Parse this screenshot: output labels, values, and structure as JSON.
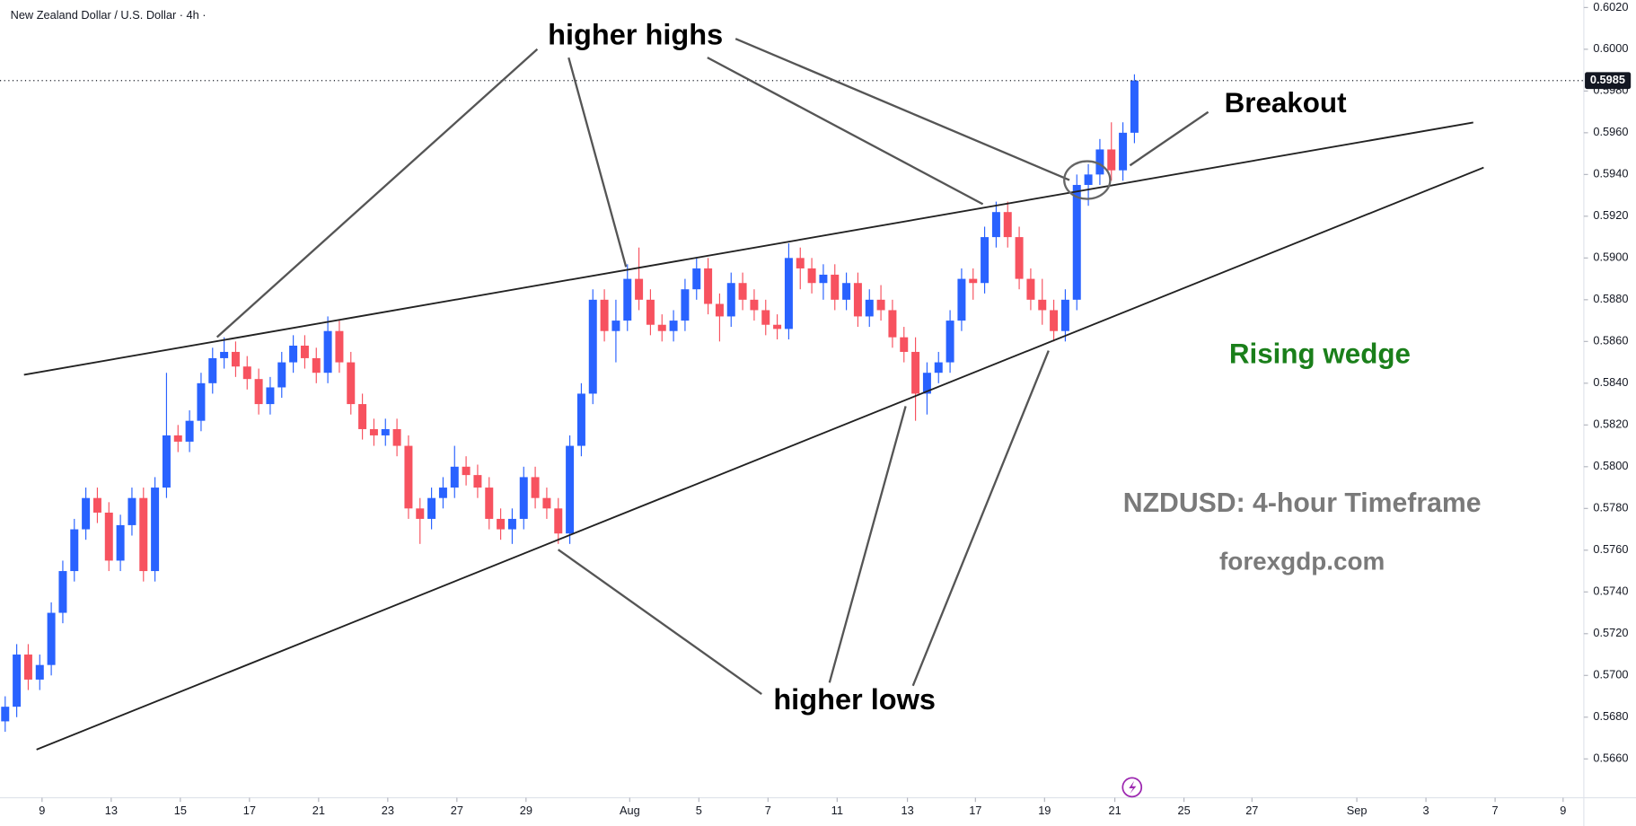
{
  "chart_data": {
    "type": "candlestick",
    "title": "New Zealand Dollar / U.S. Dollar · 4h ·",
    "up_color": "#2962ff",
    "down_color": "#f7525f",
    "grid": false,
    "annotations": {
      "higher_highs": "higher highs",
      "breakout": "Breakout",
      "rising_wedge": "Rising wedge",
      "timeframe": "NZDUSD: 4-hour Timeframe",
      "site": "forexgdp.com",
      "higher_lows": "higher lows"
    },
    "xlim": [
      -0.45,
      137.0
    ],
    "xticks": [
      {
        "value": 3.2,
        "label": "9"
      },
      {
        "value": 9.2,
        "label": "13"
      },
      {
        "value": 15.2,
        "label": "15"
      },
      {
        "value": 21.2,
        "label": "17"
      },
      {
        "value": 27.2,
        "label": "21"
      },
      {
        "value": 33.2,
        "label": "23"
      },
      {
        "value": 39.2,
        "label": "27"
      },
      {
        "value": 45.2,
        "label": "29"
      },
      {
        "value": 54.2,
        "label": "Aug"
      },
      {
        "value": 60.2,
        "label": "5"
      },
      {
        "value": 66.2,
        "label": "7"
      },
      {
        "value": 72.2,
        "label": "11"
      },
      {
        "value": 78.3,
        "label": "13"
      },
      {
        "value": 84.2,
        "label": "17"
      },
      {
        "value": 90.2,
        "label": "19"
      },
      {
        "value": 96.3,
        "label": "21"
      },
      {
        "value": 102.3,
        "label": "25"
      },
      {
        "value": 108.2,
        "label": "27"
      },
      {
        "value": 117.3,
        "label": "Sep"
      },
      {
        "value": 123.3,
        "label": "3"
      },
      {
        "value": 129.3,
        "label": "7"
      },
      {
        "value": 135.2,
        "label": "9"
      }
    ],
    "ylim": [
      0.56414,
      0.60236
    ],
    "yticks": [
      {
        "value": 0.566,
        "label": "0.5660"
      },
      {
        "value": 0.568,
        "label": "0.5680"
      },
      {
        "value": 0.57,
        "label": "0.5700"
      },
      {
        "value": 0.572,
        "label": "0.5720"
      },
      {
        "value": 0.574,
        "label": "0.5740"
      },
      {
        "value": 0.576,
        "label": "0.5760"
      },
      {
        "value": 0.578,
        "label": "0.5780"
      },
      {
        "value": 0.58,
        "label": "0.5800"
      },
      {
        "value": 0.582,
        "label": "0.5820"
      },
      {
        "value": 0.584,
        "label": "0.5840"
      },
      {
        "value": 0.586,
        "label": "0.5860"
      },
      {
        "value": 0.588,
        "label": "0.5880"
      },
      {
        "value": 0.59,
        "label": "0.5900"
      },
      {
        "value": 0.592,
        "label": "0.5920"
      },
      {
        "value": 0.594,
        "label": "0.5940"
      },
      {
        "value": 0.596,
        "label": "0.5960"
      },
      {
        "value": 0.598,
        "label": "0.5980"
      },
      {
        "value": 0.6,
        "label": "0.6000"
      },
      {
        "value": 0.602,
        "label": "0.6020"
      }
    ],
    "open": [
      0.5678,
      0.5685,
      0.571,
      0.5698,
      0.5705,
      0.573,
      0.575,
      0.577,
      0.5785,
      0.5778,
      0.5755,
      0.5772,
      0.5785,
      0.575,
      0.579,
      0.5815,
      0.5812,
      0.5822,
      0.584,
      0.5852,
      0.5855,
      0.5848,
      0.5842,
      0.583,
      0.5838,
      0.585,
      0.5858,
      0.5852,
      0.5845,
      0.5865,
      0.585,
      0.583,
      0.5818,
      0.5815,
      0.5818,
      0.581,
      0.578,
      0.5775,
      0.5785,
      0.579,
      0.58,
      0.5796,
      0.579,
      0.5775,
      0.577,
      0.5775,
      0.5795,
      0.5785,
      0.578,
      0.5768,
      0.581,
      0.5835,
      0.588,
      0.5865,
      0.587,
      0.589,
      0.588,
      0.5868,
      0.5865,
      0.587,
      0.5885,
      0.5895,
      0.5878,
      0.5872,
      0.5888,
      0.588,
      0.5875,
      0.5868,
      0.5866,
      0.59,
      0.5895,
      0.5888,
      0.5892,
      0.588,
      0.5888,
      0.5872,
      0.588,
      0.5875,
      0.5862,
      0.5855,
      0.5835,
      0.5845,
      0.585,
      0.587,
      0.589,
      0.5888,
      0.591,
      0.5922,
      0.591,
      0.589,
      0.588,
      0.5875,
      0.5865,
      0.588,
      0.5935,
      0.594,
      0.5952,
      0.5942,
      0.596
    ],
    "high": [
      0.569,
      0.5715,
      0.5715,
      0.571,
      0.5735,
      0.5755,
      0.5775,
      0.579,
      0.579,
      0.5783,
      0.5777,
      0.579,
      0.579,
      0.5795,
      0.5845,
      0.582,
      0.5827,
      0.5845,
      0.5857,
      0.5862,
      0.586,
      0.5853,
      0.5847,
      0.5843,
      0.5855,
      0.5863,
      0.5863,
      0.5857,
      0.5872,
      0.587,
      0.5855,
      0.5835,
      0.5823,
      0.5823,
      0.5823,
      0.5815,
      0.5785,
      0.579,
      0.5795,
      0.581,
      0.5805,
      0.5801,
      0.5795,
      0.578,
      0.578,
      0.58,
      0.58,
      0.579,
      0.5785,
      0.5815,
      0.584,
      0.5885,
      0.5885,
      0.588,
      0.5897,
      0.5905,
      0.5885,
      0.5873,
      0.5875,
      0.589,
      0.59,
      0.59,
      0.5883,
      0.5893,
      0.5893,
      0.5885,
      0.588,
      0.5873,
      0.5907,
      0.5905,
      0.59,
      0.5897,
      0.5897,
      0.5893,
      0.5893,
      0.5885,
      0.5887,
      0.588,
      0.5867,
      0.5862,
      0.585,
      0.5855,
      0.5875,
      0.5895,
      0.5895,
      0.5915,
      0.5927,
      0.5927,
      0.5915,
      0.5895,
      0.589,
      0.588,
      0.5885,
      0.594,
      0.5945,
      0.5957,
      0.5965,
      0.5965,
      0.5988
    ],
    "low": [
      0.5673,
      0.568,
      0.5693,
      0.5693,
      0.57,
      0.5725,
      0.5745,
      0.5765,
      0.5773,
      0.575,
      0.575,
      0.5767,
      0.5745,
      0.5745,
      0.5785,
      0.5807,
      0.5807,
      0.5817,
      0.5835,
      0.5847,
      0.5843,
      0.5837,
      0.5825,
      0.5825,
      0.5833,
      0.5845,
      0.5847,
      0.584,
      0.584,
      0.5845,
      0.5825,
      0.5813,
      0.581,
      0.581,
      0.5805,
      0.5775,
      0.5763,
      0.577,
      0.578,
      0.5785,
      0.5791,
      0.5785,
      0.577,
      0.5765,
      0.5763,
      0.577,
      0.578,
      0.5775,
      0.5763,
      0.5763,
      0.5805,
      0.583,
      0.586,
      0.585,
      0.5865,
      0.5875,
      0.5863,
      0.586,
      0.586,
      0.5865,
      0.588,
      0.5873,
      0.586,
      0.5867,
      0.5875,
      0.587,
      0.5863,
      0.5861,
      0.5861,
      0.5885,
      0.5883,
      0.588,
      0.5875,
      0.5875,
      0.5867,
      0.5867,
      0.587,
      0.5857,
      0.585,
      0.5822,
      0.5825,
      0.584,
      0.5845,
      0.5865,
      0.588,
      0.5883,
      0.5905,
      0.5905,
      0.5885,
      0.5875,
      0.5868,
      0.586,
      0.586,
      0.5875,
      0.5925,
      0.5935,
      0.5937,
      0.5937,
      0.5955
    ],
    "close": [
      0.5685,
      0.571,
      0.5698,
      0.5705,
      0.573,
      0.575,
      0.577,
      0.5785,
      0.5778,
      0.5755,
      0.5772,
      0.5785,
      0.575,
      0.579,
      0.5815,
      0.5812,
      0.5822,
      0.584,
      0.5852,
      0.5855,
      0.5848,
      0.5842,
      0.583,
      0.5838,
      0.585,
      0.5858,
      0.5852,
      0.5845,
      0.5865,
      0.585,
      0.583,
      0.5818,
      0.5815,
      0.5818,
      0.581,
      0.578,
      0.5775,
      0.5785,
      0.579,
      0.58,
      0.5796,
      0.579,
      0.5775,
      0.577,
      0.5775,
      0.5795,
      0.5785,
      0.578,
      0.5768,
      0.581,
      0.5835,
      0.588,
      0.5865,
      0.587,
      0.589,
      0.588,
      0.5868,
      0.5865,
      0.587,
      0.5885,
      0.5895,
      0.5878,
      0.5872,
      0.5888,
      0.588,
      0.5875,
      0.5868,
      0.5866,
      0.59,
      0.5895,
      0.5888,
      0.5892,
      0.588,
      0.5888,
      0.5872,
      0.588,
      0.5875,
      0.5862,
      0.5855,
      0.5835,
      0.5845,
      0.585,
      0.587,
      0.589,
      0.5888,
      0.591,
      0.5922,
      0.591,
      0.589,
      0.588,
      0.5875,
      0.5865,
      0.588,
      0.5935,
      0.594,
      0.5952,
      0.5942,
      0.596,
      0.5985
    ]
  }
}
